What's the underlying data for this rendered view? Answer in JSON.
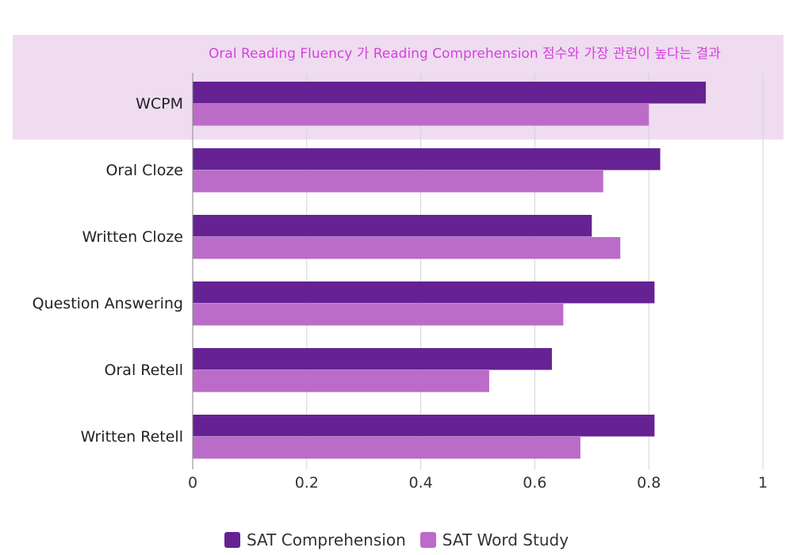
{
  "chart_data": {
    "type": "bar",
    "orientation": "horizontal",
    "categories": [
      "WCPM",
      "Oral Cloze",
      "Written Cloze",
      "Question Answering",
      "Oral Retell",
      "Written Retell"
    ],
    "series": [
      {
        "name": "SAT Comprehension",
        "color": "#662293",
        "values": [
          0.9,
          0.82,
          0.7,
          0.81,
          0.63,
          0.81
        ]
      },
      {
        "name": "SAT Word Study",
        "color": "#bb6cc8",
        "values": [
          0.8,
          0.72,
          0.75,
          0.65,
          0.52,
          0.68
        ]
      }
    ],
    "x_ticks": [
      "0",
      "0.2",
      "0.4",
      "0.6",
      "0.8",
      "1"
    ],
    "xlim": [
      0,
      1
    ],
    "grid": "vertical",
    "legend_position": "bottom",
    "annotation": {
      "text": "Oral Reading Fluency 가 Reading Comprehension 점수와 가장 관련이 높다는 결과",
      "target_category": "WCPM",
      "highlight_color": "#efdcf0",
      "text_color": "#d63fe0"
    }
  }
}
